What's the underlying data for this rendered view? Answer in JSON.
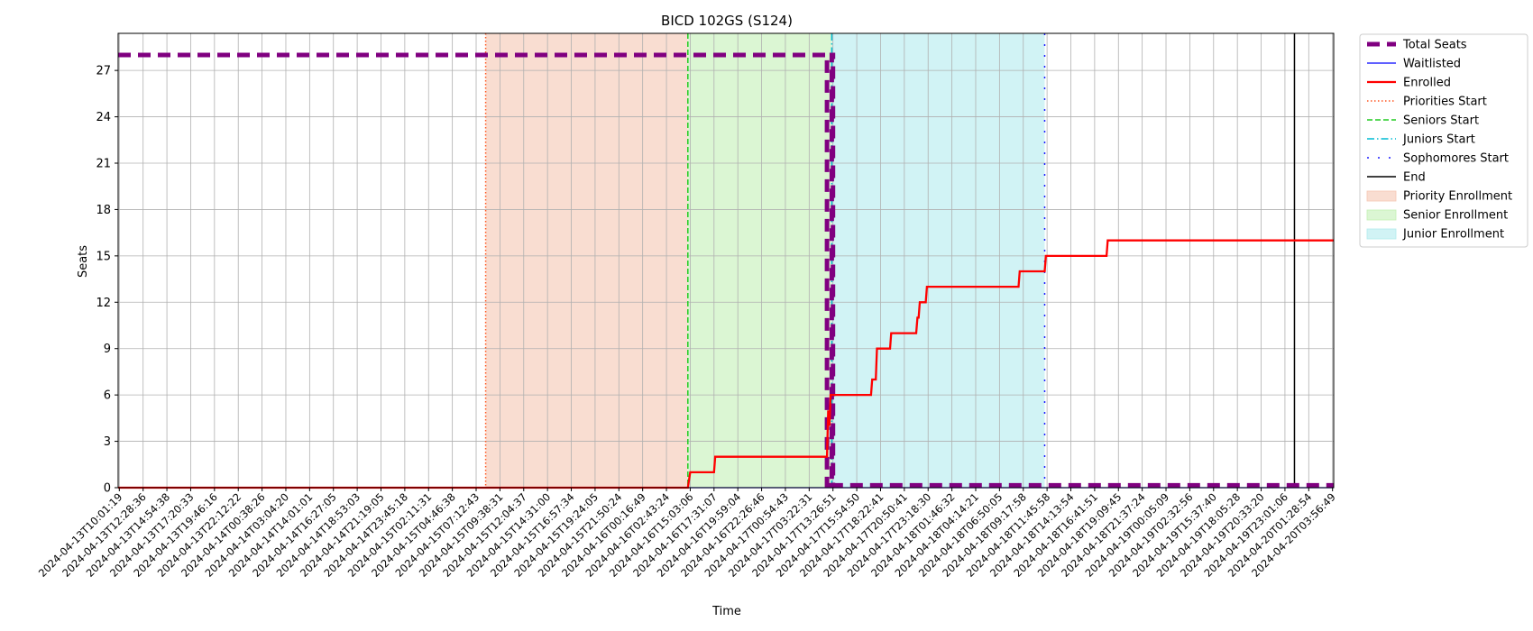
{
  "chart_data": {
    "type": "line",
    "title": "BICD 102GS (S124)",
    "xlabel": "Time",
    "ylabel": "Seats",
    "ylim": [
      0,
      29.4
    ],
    "yticks": [
      0,
      3,
      6,
      9,
      12,
      15,
      18,
      21,
      24,
      27
    ],
    "grid": true,
    "legend_position": "outside-right",
    "x_ticks": [
      "2024-04-13T10:01:19",
      "2024-04-13T12:28:36",
      "2024-04-13T14:54:38",
      "2024-04-13T17:20:33",
      "2024-04-13T19:46:16",
      "2024-04-13T22:12:22",
      "2024-04-14T00:38:26",
      "2024-04-14T03:04:20",
      "2024-04-14T14:01:01",
      "2024-04-14T16:27:05",
      "2024-04-14T18:53:03",
      "2024-04-14T21:19:05",
      "2024-04-14T23:45:18",
      "2024-04-15T02:11:31",
      "2024-04-15T04:46:38",
      "2024-04-15T07:12:43",
      "2024-04-15T09:38:31",
      "2024-04-15T12:04:37",
      "2024-04-15T14:31:00",
      "2024-04-15T16:57:34",
      "2024-04-15T19:24:05",
      "2024-04-15T21:50:24",
      "2024-04-16T00:16:49",
      "2024-04-16T02:43:24",
      "2024-04-16T15:03:06",
      "2024-04-16T17:31:07",
      "2024-04-16T19:59:04",
      "2024-04-16T22:26:46",
      "2024-04-17T00:54:43",
      "2024-04-17T03:22:31",
      "2024-04-17T13:26:51",
      "2024-04-17T15:54:50",
      "2024-04-17T18:22:41",
      "2024-04-17T20:50:41",
      "2024-04-17T23:18:30",
      "2024-04-18T01:46:32",
      "2024-04-18T04:14:21",
      "2024-04-18T06:50:05",
      "2024-04-18T09:17:58",
      "2024-04-18T11:45:58",
      "2024-04-18T14:13:54",
      "2024-04-18T16:41:51",
      "2024-04-18T19:09:45",
      "2024-04-18T21:37:24",
      "2024-04-19T00:05:09",
      "2024-04-19T02:32:56",
      "2024-04-19T15:37:40",
      "2024-04-19T18:05:28",
      "2024-04-19T20:33:20",
      "2024-04-19T23:01:06",
      "2024-04-20T01:28:54",
      "2024-04-20T03:56:49"
    ],
    "x_range_ticks": [
      -0.05,
      51.05
    ],
    "series": [
      {
        "name": "Total Seats",
        "color": "#800080",
        "style": "thick-dashed",
        "points": [
          [
            -0.05,
            28
          ],
          [
            29.75,
            28
          ],
          [
            29.75,
            0.15
          ],
          [
            29.95,
            0.15
          ],
          [
            29.95,
            28
          ],
          [
            30.0,
            28
          ],
          [
            30.0,
            0.15
          ],
          [
            51.05,
            0.15
          ]
        ]
      },
      {
        "name": "Waitlisted",
        "color": "#0000ff",
        "style": "solid-thin",
        "points": [
          [
            -0.05,
            0
          ],
          [
            51.05,
            0
          ]
        ]
      },
      {
        "name": "Enrolled",
        "color": "#ff0000",
        "style": "solid-thick",
        "points": [
          [
            -0.05,
            0
          ],
          [
            23.9,
            0
          ],
          [
            24.0,
            1
          ],
          [
            25.0,
            1
          ],
          [
            25.05,
            2
          ],
          [
            29.75,
            2
          ],
          [
            29.8,
            5
          ],
          [
            29.85,
            4
          ],
          [
            29.9,
            6
          ],
          [
            31.6,
            6
          ],
          [
            31.65,
            7
          ],
          [
            31.8,
            7
          ],
          [
            31.85,
            9
          ],
          [
            32.4,
            9
          ],
          [
            32.45,
            10
          ],
          [
            33.5,
            10
          ],
          [
            33.55,
            11
          ],
          [
            33.6,
            11
          ],
          [
            33.65,
            12
          ],
          [
            33.9,
            12
          ],
          [
            33.95,
            13
          ],
          [
            37.8,
            13
          ],
          [
            37.85,
            14
          ],
          [
            38.9,
            14
          ],
          [
            38.95,
            15
          ],
          [
            41.5,
            15
          ],
          [
            41.55,
            16
          ],
          [
            51.05,
            16
          ]
        ]
      }
    ],
    "vlines": [
      {
        "name": "Priorities Start",
        "x": 15.4,
        "color": "#ff5722",
        "style": "dotted"
      },
      {
        "name": "Seniors Start",
        "x": 23.9,
        "color": "#22cc22",
        "style": "dashed"
      },
      {
        "name": "Juniors Start",
        "x": 29.95,
        "color": "#00bcd4",
        "style": "dashdot"
      },
      {
        "name": "Sophomores Start",
        "x": 38.9,
        "color": "#1a1aff",
        "style": "loosely-dashdot"
      },
      {
        "name": "End",
        "x": 49.4,
        "color": "#000000",
        "style": "solid"
      }
    ],
    "spans": [
      {
        "name": "Priority Enrollment",
        "x0": 15.4,
        "x1": 23.9,
        "color": "#f5c7b3"
      },
      {
        "name": "Senior Enrollment",
        "x0": 23.9,
        "x1": 29.95,
        "color": "#c3f0b5"
      },
      {
        "name": "Junior Enrollment",
        "x0": 29.95,
        "x1": 38.9,
        "color": "#b2ebee"
      }
    ],
    "legend": [
      {
        "label": "Total Seats",
        "kind": "line",
        "color": "#800080",
        "style": "thick-dashed"
      },
      {
        "label": "Waitlisted",
        "kind": "line",
        "color": "#0000ff",
        "style": "solid-thin"
      },
      {
        "label": "Enrolled",
        "kind": "line",
        "color": "#ff0000",
        "style": "solid-thick"
      },
      {
        "label": "Priorities Start",
        "kind": "line",
        "color": "#ff5722",
        "style": "dotted"
      },
      {
        "label": "Seniors Start",
        "kind": "line",
        "color": "#22cc22",
        "style": "dashed"
      },
      {
        "label": "Juniors Start",
        "kind": "line",
        "color": "#00bcd4",
        "style": "dashdot"
      },
      {
        "label": "Sophomores Start",
        "kind": "line",
        "color": "#1a1aff",
        "style": "loosely-dashdot"
      },
      {
        "label": "End",
        "kind": "line",
        "color": "#000000",
        "style": "solid"
      },
      {
        "label": "Priority Enrollment",
        "kind": "patch",
        "color": "#f5c7b3"
      },
      {
        "label": "Senior Enrollment",
        "kind": "patch",
        "color": "#c3f0b5"
      },
      {
        "label": "Junior Enrollment",
        "kind": "patch",
        "color": "#b2ebee"
      }
    ]
  }
}
